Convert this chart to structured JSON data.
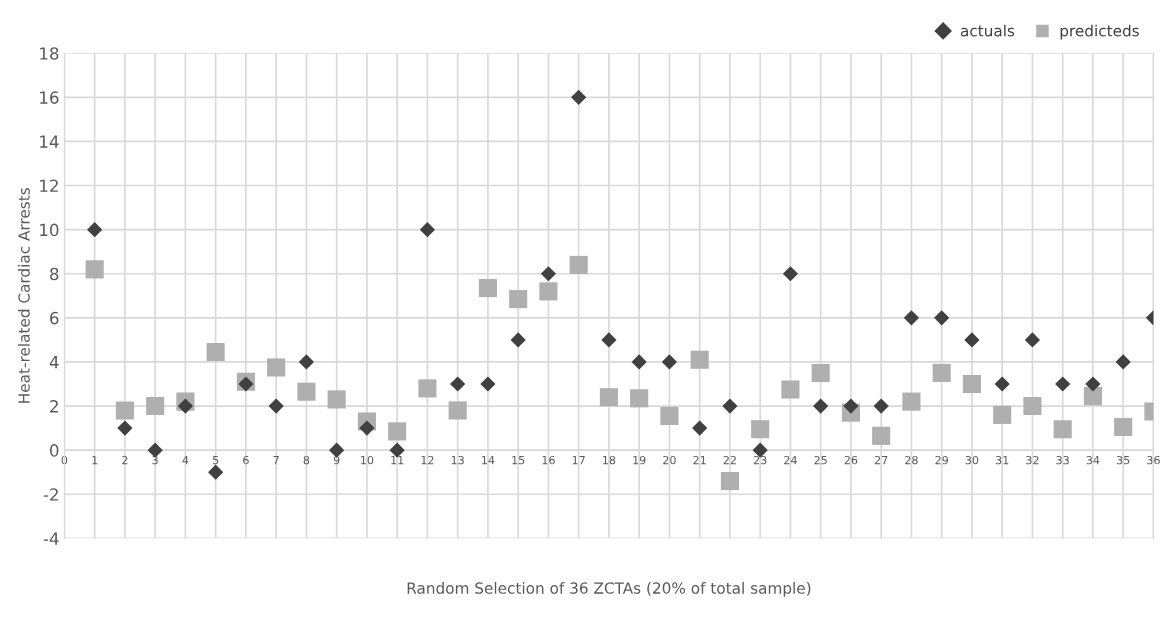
{
  "chart_data": {
    "type": "scatter",
    "xlabel": "Random Selection of 36 ZCTAs (20% of total sample)",
    "ylabel": "Heat-related Cardiac Arrests",
    "x": [
      1,
      2,
      3,
      4,
      5,
      6,
      7,
      8,
      9,
      10,
      11,
      12,
      13,
      14,
      15,
      16,
      17,
      18,
      19,
      20,
      21,
      22,
      23,
      24,
      25,
      26,
      27,
      28,
      29,
      30,
      31,
      32,
      33,
      34,
      35,
      36
    ],
    "series": [
      {
        "name": "actuals",
        "color": "#404040",
        "marker": "diamond",
        "values": [
          10,
          1,
          0,
          2,
          -1,
          3,
          2,
          4,
          0,
          1,
          0,
          10,
          3,
          3,
          5,
          8,
          16,
          5,
          4,
          4,
          1,
          2,
          0,
          8,
          2,
          2,
          2,
          6,
          6,
          5,
          3,
          5,
          3,
          3,
          4,
          6
        ]
      },
      {
        "name": "predicteds",
        "color": "#afafaf",
        "marker": "square",
        "values": [
          8.2,
          1.8,
          2.0,
          2.2,
          4.45,
          3.1,
          3.75,
          2.65,
          2.3,
          1.3,
          0.85,
          2.8,
          1.8,
          7.35,
          6.85,
          7.2,
          8.4,
          2.4,
          2.35,
          1.55,
          4.1,
          -1.4,
          0.95,
          2.75,
          3.5,
          1.7,
          0.65,
          2.2,
          3.5,
          3.0,
          1.6,
          2.0,
          0.95,
          2.45,
          1.05,
          1.75
        ]
      }
    ],
    "xlim": [
      0,
      36
    ],
    "xticks": [
      0,
      1,
      2,
      3,
      4,
      5,
      6,
      7,
      8,
      9,
      10,
      11,
      12,
      13,
      14,
      15,
      16,
      17,
      18,
      19,
      20,
      21,
      22,
      23,
      24,
      25,
      26,
      27,
      28,
      29,
      30,
      31,
      32,
      33,
      34,
      35,
      36
    ],
    "ylim": [
      -4,
      18
    ],
    "yticks": [
      -4,
      -2,
      0,
      2,
      4,
      6,
      8,
      10,
      12,
      14,
      16,
      18
    ],
    "grid": true,
    "legend": "top right"
  }
}
